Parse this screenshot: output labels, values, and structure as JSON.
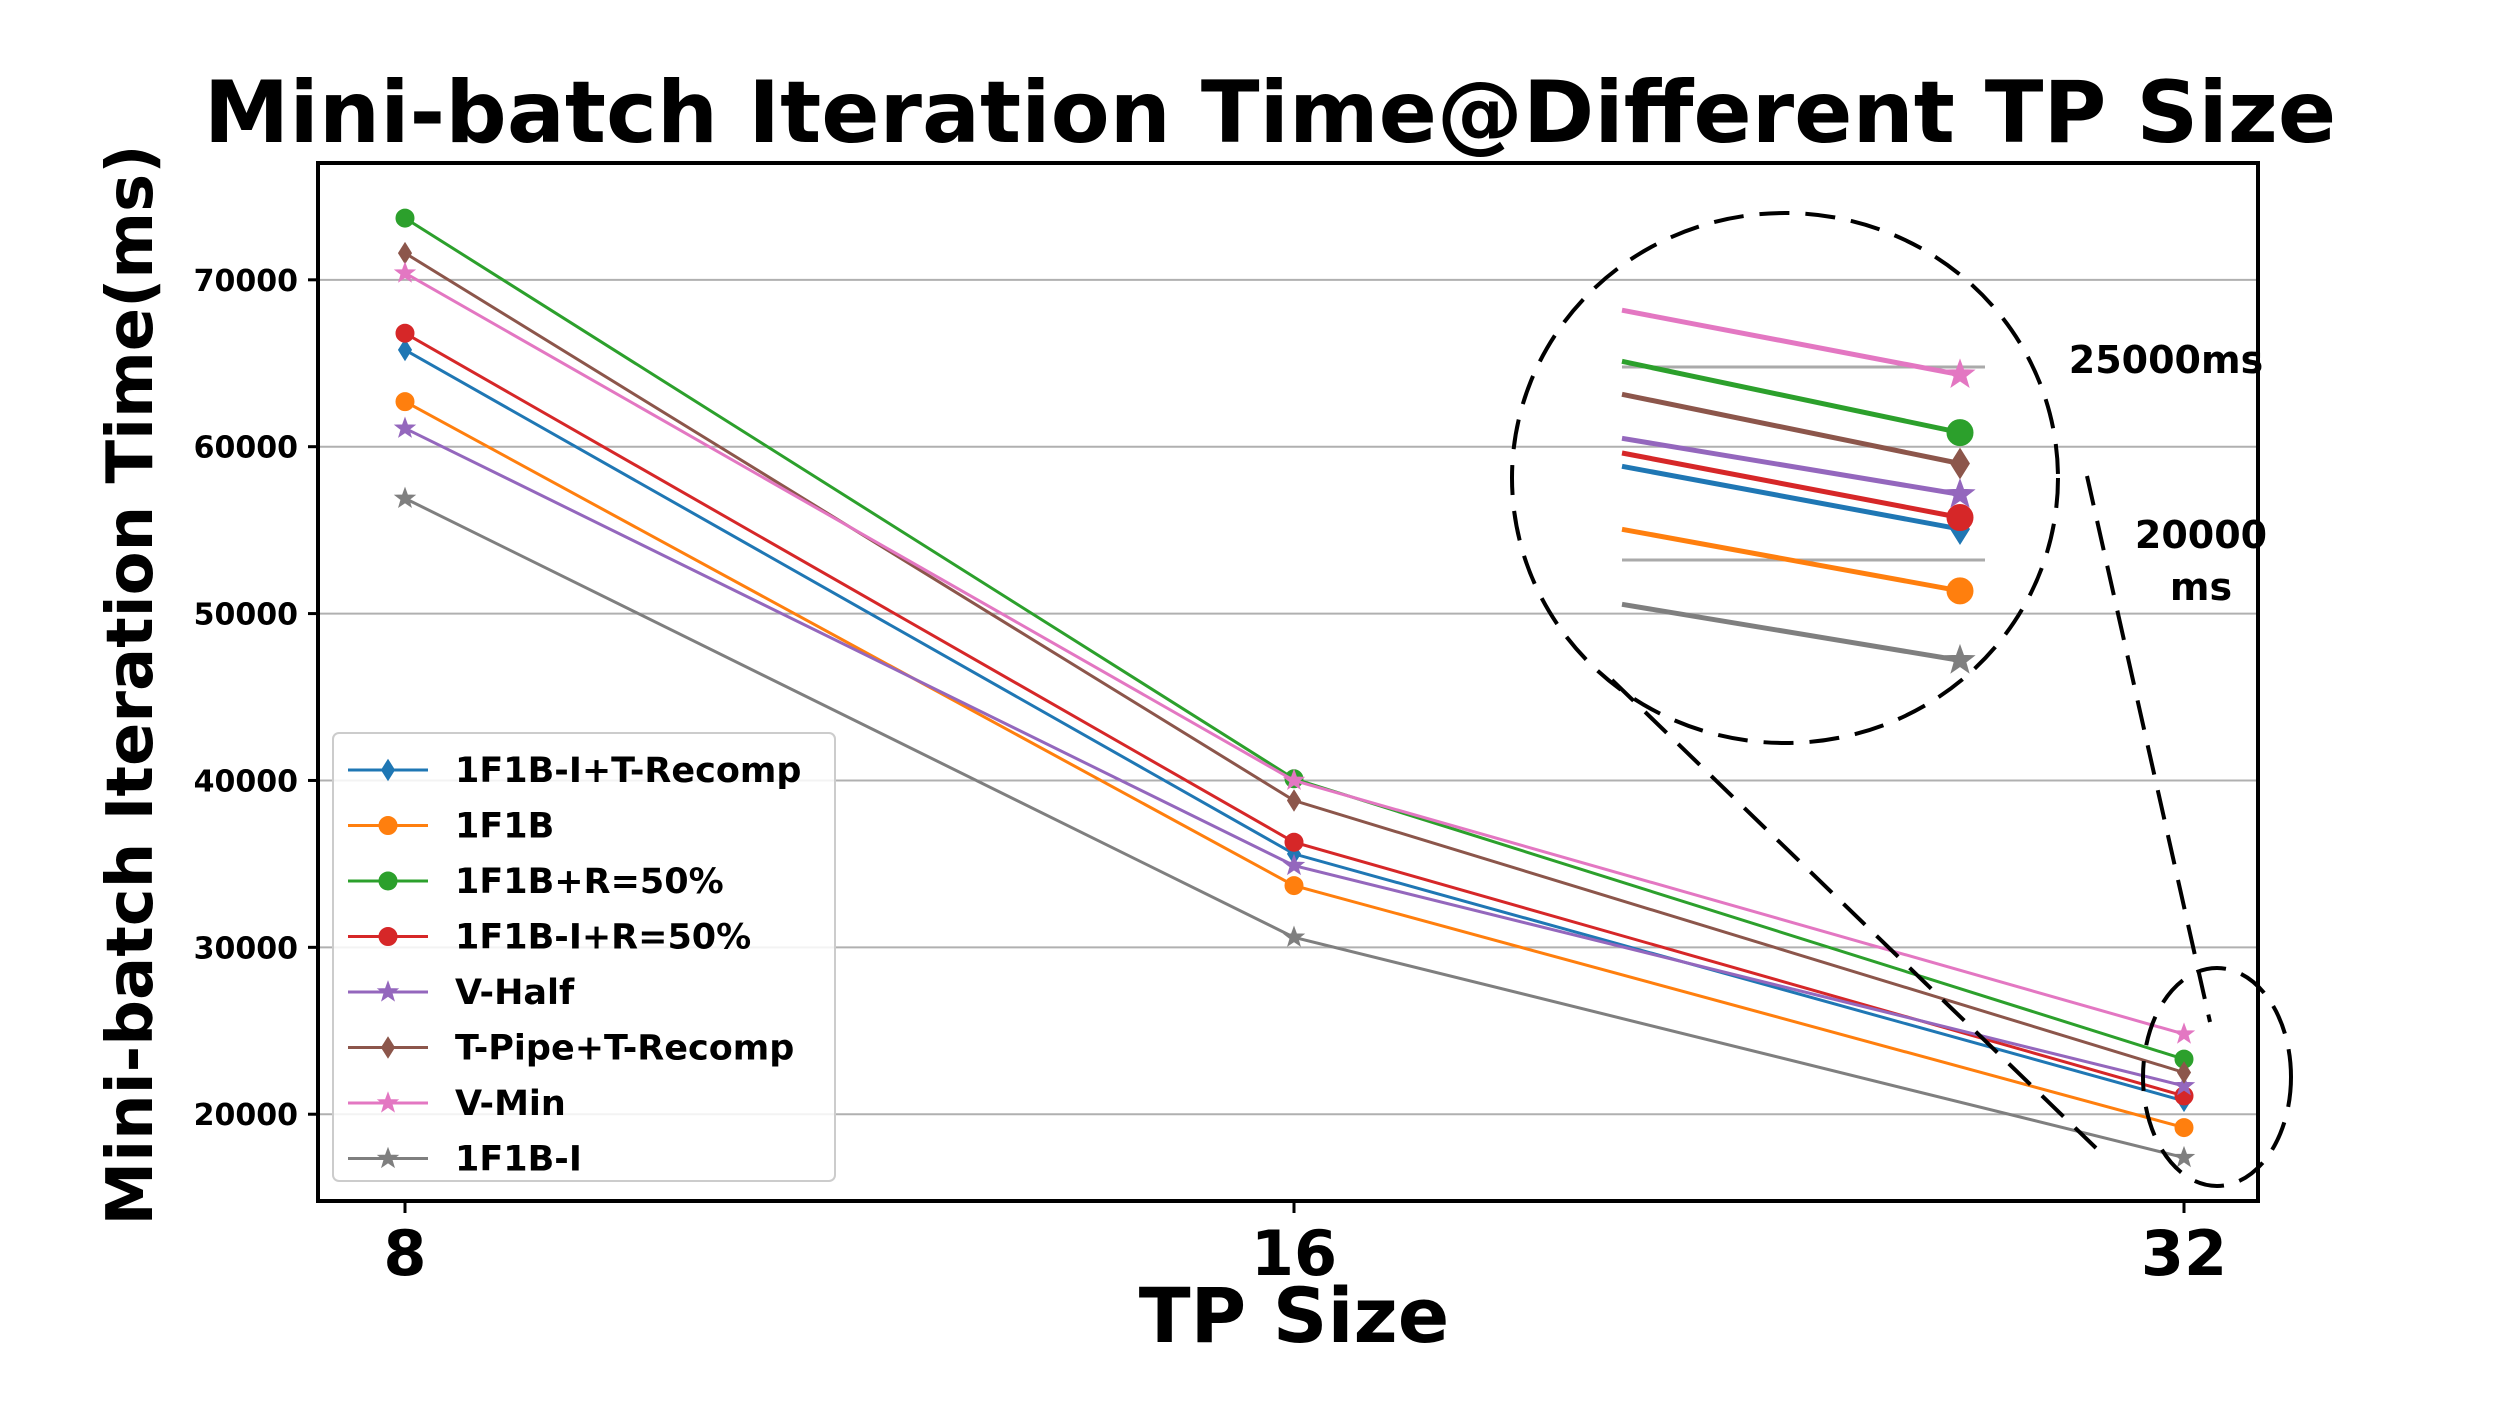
{
  "chart_data": {
    "type": "line",
    "title": "Mini-batch Iteration Time@Different TP Size",
    "xlabel": "TP Size",
    "ylabel": "Mini-batch Iteration Time(ms)",
    "categories": [
      "8",
      "16",
      "32"
    ],
    "ylim": [
      14800,
      77000
    ],
    "yticks": [
      20000,
      30000,
      40000,
      50000,
      60000,
      70000
    ],
    "grid": "horizontal",
    "legend_position": "lower-left",
    "series": [
      {
        "name": "1F1B-I+T-Recomp",
        "color": "#1f77b4",
        "marker": "diamond",
        "values": [
          65800,
          35600,
          20800
        ]
      },
      {
        "name": "1F1B",
        "color": "#ff7f0e",
        "marker": "circle",
        "values": [
          62700,
          33700,
          19200
        ]
      },
      {
        "name": "1F1B+R=50%",
        "color": "#2ca02c",
        "marker": "circle",
        "values": [
          73700,
          40100,
          23300
        ]
      },
      {
        "name": "1F1B-I+R=50%",
        "color": "#d62728",
        "marker": "circle",
        "values": [
          66800,
          36300,
          21100
        ]
      },
      {
        "name": "V-Half",
        "color": "#9467bd",
        "marker": "star",
        "values": [
          61100,
          34900,
          21700
        ]
      },
      {
        "name": "T-Pipe+T-Recomp",
        "color": "#8c564b",
        "marker": "diamond",
        "values": [
          71600,
          38800,
          22500
        ]
      },
      {
        "name": "V-Min",
        "color": "#e377c2",
        "marker": "star",
        "values": [
          70400,
          40000,
          24800
        ]
      },
      {
        "name": "1F1B-I",
        "color": "#7f7f7f",
        "marker": "star",
        "values": [
          56900,
          30600,
          17400
        ]
      }
    ],
    "annotations": {
      "zoom_label_top": "25000ms",
      "zoom_label_bottom_line1": "20000",
      "zoom_label_bottom_line2": "ms"
    }
  }
}
